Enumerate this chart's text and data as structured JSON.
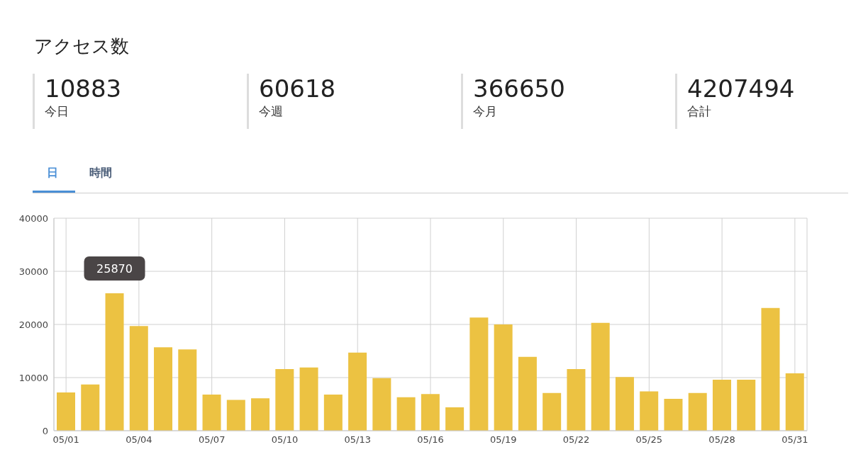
{
  "chart_data": [
    {
      "type": "other",
      "title": "アクセス数",
      "annotations": [
        "10883",
        "今日",
        "60618",
        "今週",
        "366650",
        "今月",
        "4207494",
        "合計",
        "日",
        "時間"
      ]
    },
    {
      "type": "bar",
      "categories": [
        "05/01",
        null,
        null,
        "05/04",
        null,
        null,
        "05/07",
        null,
        null,
        "05/10",
        null,
        null,
        "05/13",
        null,
        null,
        "05/16",
        null,
        null,
        "05/19",
        null,
        null,
        "05/22",
        null,
        null,
        "05/25",
        null,
        null,
        "05/28",
        null,
        null,
        "05/31"
      ],
      "values": [
        7200,
        8700,
        25870,
        19700,
        15700,
        15300,
        6800,
        5800,
        6100,
        11600,
        11900,
        6800,
        14700,
        9900,
        6300,
        6900,
        4400,
        21300,
        20000,
        13900,
        7100,
        11600,
        20300,
        10100,
        7400,
        6000,
        7100,
        9600,
        9600,
        23100,
        10800
      ],
      "value_labels": [
        null,
        null,
        "25870",
        null,
        null,
        null,
        null,
        null,
        null,
        null,
        null,
        null,
        null,
        null,
        null,
        null,
        null,
        null,
        null,
        null,
        null,
        null,
        null,
        null,
        null,
        null,
        null,
        null,
        null,
        null,
        null
      ],
      "color": "#ecc242",
      "ylim": [
        0,
        40000
      ],
      "yticks": [
        0,
        10000,
        20000,
        30000,
        40000
      ],
      "grid": true
    }
  ]
}
